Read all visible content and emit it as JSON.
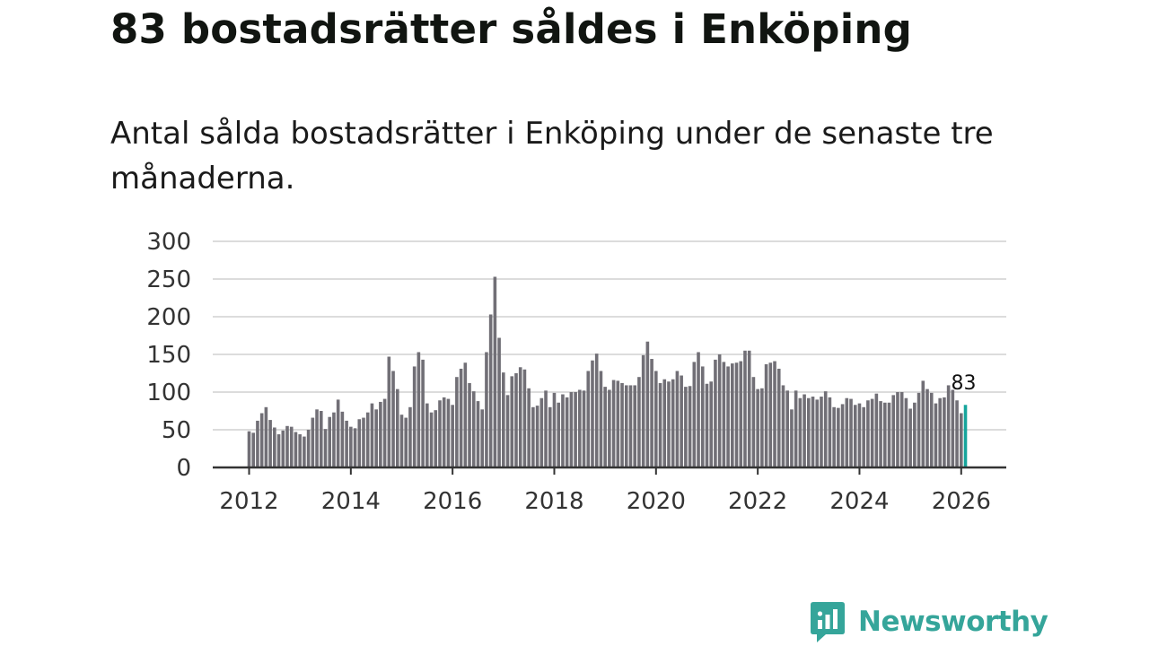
{
  "title": "83 bostadsrätter såldes i Enköping",
  "subtitle": "Antal sålda bostadsrätter i Enköping under de senaste tre månaderna.",
  "brand": {
    "name": "Newsworthy",
    "color": "#35a59a",
    "icon": "newsworthy-logo-icon"
  },
  "colors": {
    "bar": "#716f76",
    "highlight": "#16a59c",
    "grid": "#dcdcdc",
    "axis": "#333333"
  },
  "chart_data": {
    "type": "bar",
    "title": "",
    "xlabel": "",
    "ylabel": "",
    "ylim": [
      0,
      300
    ],
    "yticks": [
      0,
      50,
      100,
      150,
      200,
      250,
      300
    ],
    "xticks": [
      "2012",
      "2014",
      "2016",
      "2018",
      "2020",
      "2022",
      "2024",
      "2026"
    ],
    "x_start": "2012-01",
    "x_unit": "month",
    "grid": true,
    "highlight_last": true,
    "last_value_label": "83",
    "values": [
      48,
      46,
      62,
      72,
      80,
      63,
      53,
      44,
      49,
      55,
      54,
      47,
      44,
      41,
      50,
      66,
      77,
      75,
      51,
      67,
      73,
      90,
      74,
      62,
      54,
      52,
      64,
      66,
      73,
      85,
      77,
      87,
      91,
      147,
      128,
      104,
      70,
      66,
      80,
      134,
      153,
      143,
      85,
      73,
      76,
      89,
      93,
      91,
      83,
      120,
      131,
      139,
      112,
      101,
      88,
      77,
      153,
      203,
      253,
      172,
      126,
      96,
      121,
      125,
      133,
      130,
      105,
      80,
      82,
      92,
      102,
      80,
      99,
      86,
      97,
      93,
      100,
      100,
      103,
      102,
      128,
      142,
      151,
      128,
      107,
      103,
      116,
      115,
      112,
      109,
      109,
      109,
      120,
      149,
      167,
      144,
      128,
      112,
      117,
      114,
      117,
      128,
      122,
      107,
      108,
      140,
      153,
      134,
      111,
      114,
      143,
      150,
      140,
      134,
      138,
      139,
      141,
      155,
      155,
      120,
      104,
      105,
      137,
      139,
      141,
      131,
      109,
      102,
      77,
      102,
      92,
      97,
      92,
      94,
      90,
      94,
      101,
      93,
      80,
      79,
      84,
      92,
      91,
      83,
      85,
      80,
      89,
      91,
      98,
      88,
      86,
      86,
      96,
      100,
      100,
      92,
      78,
      86,
      99,
      115,
      104,
      99,
      85,
      92,
      93,
      109,
      103,
      89,
      72,
      83
    ]
  }
}
